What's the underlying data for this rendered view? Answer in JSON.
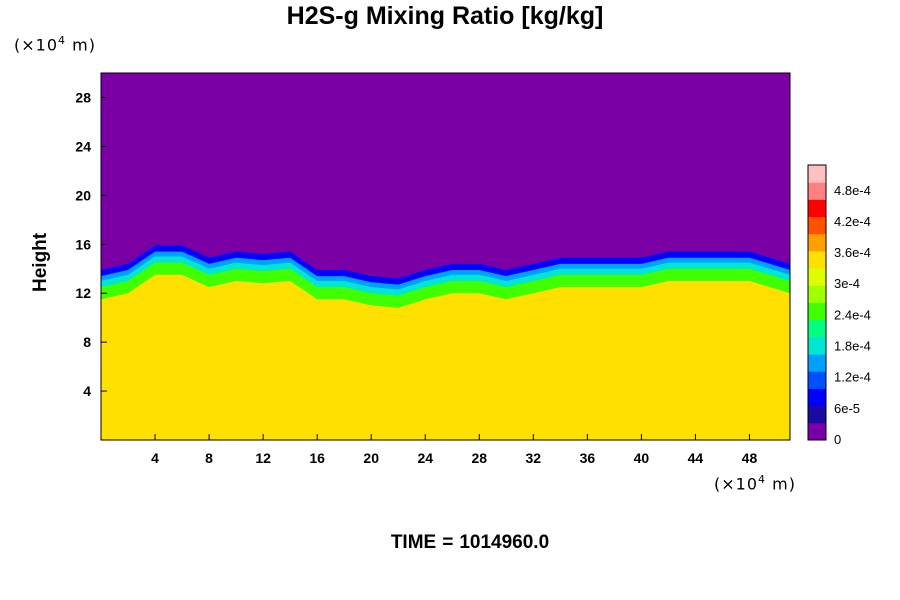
{
  "title": "H2S-g Mixing Ratio [kg/kg]",
  "y_unit": {
    "prefix": "(×10",
    "exp": "4",
    "suffix": " m)"
  },
  "x_unit": {
    "prefix": "(×10",
    "exp": "4",
    "suffix": " m)"
  },
  "time": {
    "label": "TIME",
    "eq": "=",
    "value": "1014960.0"
  },
  "colors": {
    "background": "#7a00a6",
    "base": "#dcff00"
  },
  "chart_data": {
    "type": "heatmap",
    "title": "H2S-g Mixing Ratio [kg/kg]",
    "xlabel": "",
    "ylabel": "Height",
    "xlim": [
      0,
      51
    ],
    "ylim": [
      0,
      30
    ],
    "x_ticks": [
      4,
      8,
      12,
      16,
      20,
      24,
      28,
      32,
      36,
      40,
      44,
      48
    ],
    "y_ticks": [
      4,
      8,
      12,
      16,
      20,
      24,
      28
    ],
    "colorbar": {
      "labels": [
        "0",
        "6e-5",
        "1.2e-4",
        "1.8e-4",
        "2.4e-4",
        "3e-4",
        "3.6e-4",
        "4.2e-4",
        "4.8e-4"
      ],
      "range": [
        0,
        0.00052
      ],
      "colors": [
        "#7a00a6",
        "#1a0aa0",
        "#0000ff",
        "#0050ff",
        "#00a0ff",
        "#00e6d2",
        "#00ff80",
        "#40ff00",
        "#a0ff00",
        "#dcff00",
        "#ffe000",
        "#ffa000",
        "#ff5000",
        "#ff0000",
        "#ff8080",
        "#ffc0c0"
      ]
    },
    "lower_layer_value": 0.00035,
    "upper_layer_value": 0,
    "interface_height_approx": [
      [
        0,
        12.5
      ],
      [
        2,
        13
      ],
      [
        4,
        14.5
      ],
      [
        6,
        14.5
      ],
      [
        8,
        13.5
      ],
      [
        10,
        14
      ],
      [
        12,
        13.8
      ],
      [
        14,
        14
      ],
      [
        16,
        12.5
      ],
      [
        18,
        12.5
      ],
      [
        20,
        12
      ],
      [
        22,
        11.8
      ],
      [
        24,
        12.5
      ],
      [
        26,
        13
      ],
      [
        28,
        13
      ],
      [
        30,
        12.5
      ],
      [
        32,
        13
      ],
      [
        34,
        13.5
      ],
      [
        36,
        13.5
      ],
      [
        38,
        13.5
      ],
      [
        40,
        13.5
      ],
      [
        42,
        14
      ],
      [
        44,
        14
      ],
      [
        46,
        14
      ],
      [
        48,
        14
      ],
      [
        51,
        13
      ]
    ]
  }
}
